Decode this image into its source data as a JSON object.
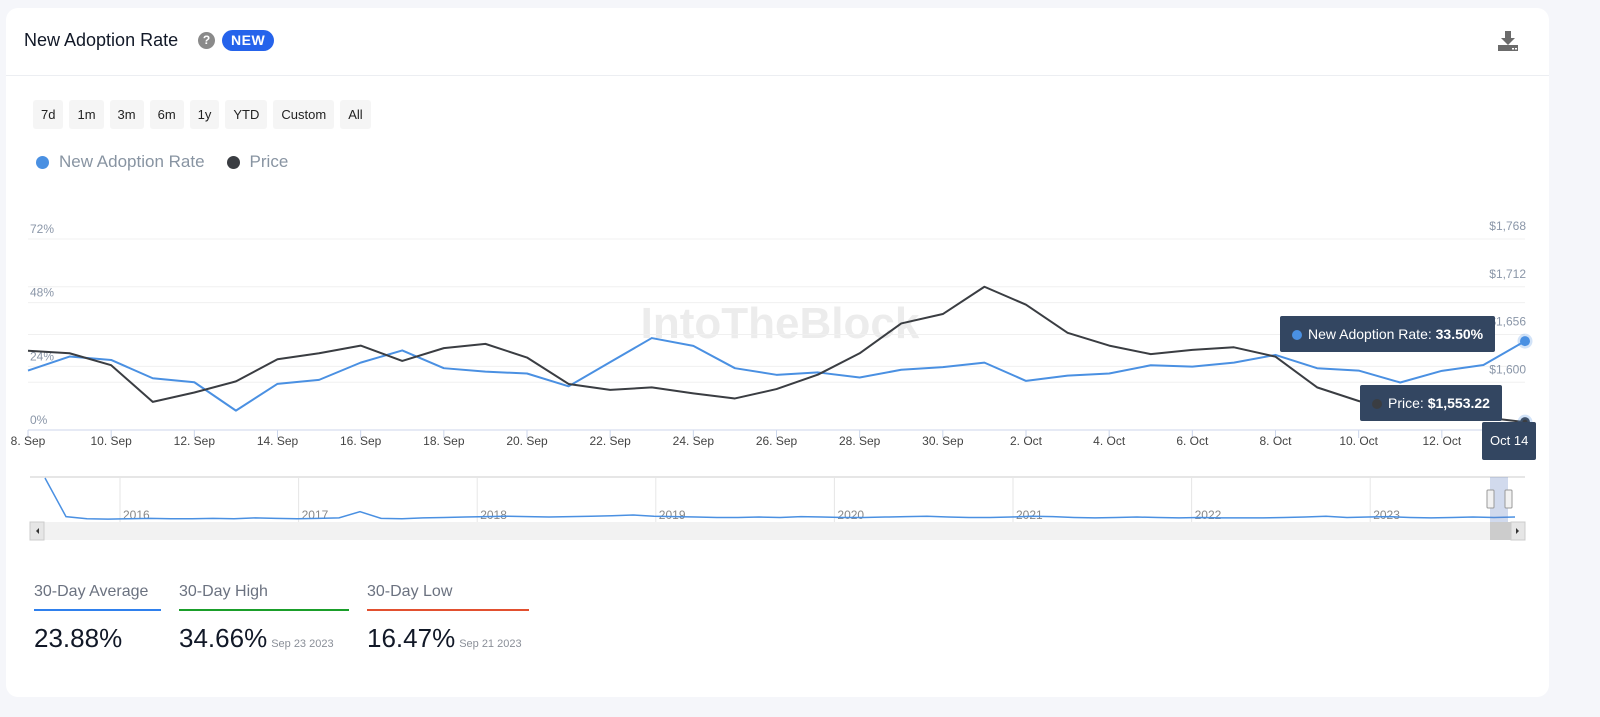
{
  "header": {
    "title": "New Adoption Rate",
    "help_icon": "?",
    "badge": "NEW"
  },
  "ranges": [
    "7d",
    "1m",
    "3m",
    "6m",
    "1y",
    "YTD",
    "Custom",
    "All"
  ],
  "legend": [
    {
      "label": "New Adoption Rate",
      "color": "#4a90e2"
    },
    {
      "label": "Price",
      "color": "#3a3d42"
    }
  ],
  "watermark": "IntoTheBlock",
  "tooltips": {
    "rate_label": "New Adoption Rate: ",
    "rate_value": "33.50%",
    "price_label": "Price: ",
    "price_value": "$1,553.22",
    "date": "Oct 14"
  },
  "chart_data": {
    "type": "line",
    "x": [
      "8. Sep",
      "9. Sep",
      "10. Sep",
      "11. Sep",
      "12. Sep",
      "13. Sep",
      "14. Sep",
      "15. Sep",
      "16. Sep",
      "17. Sep",
      "18. Sep",
      "19. Sep",
      "20. Sep",
      "21. Sep",
      "22. Sep",
      "23. Sep",
      "24. Sep",
      "25. Sep",
      "26. Sep",
      "27. Sep",
      "28. Sep",
      "29. Sep",
      "30. Sep",
      "1. Oct",
      "2. Oct",
      "3. Oct",
      "4. Oct",
      "5. Oct",
      "6. Oct",
      "7. Oct",
      "8. Oct",
      "9. Oct",
      "10. Oct",
      "11. Oct",
      "12. Oct",
      "13. Oct",
      "Oct 14"
    ],
    "x_tick_labels": [
      "8. Sep",
      "10. Sep",
      "12. Sep",
      "14. Sep",
      "16. Sep",
      "18. Sep",
      "20. Sep",
      "22. Sep",
      "24. Sep",
      "26. Sep",
      "28. Sep",
      "30. Sep",
      "2. Oct",
      "4. Oct",
      "6. Oct",
      "8. Oct",
      "10. Oct",
      "12. Oct"
    ],
    "series": [
      {
        "name": "New Adoption Rate",
        "axis": "left",
        "color": "#4a90e2",
        "values": [
          22.4,
          27.7,
          26.4,
          19.5,
          18.0,
          7.3,
          17.4,
          18.9,
          25.4,
          30.0,
          23.3,
          22.0,
          21.3,
          16.47,
          25.6,
          34.66,
          31.7,
          23.3,
          20.8,
          21.7,
          19.8,
          22.7,
          23.7,
          25.4,
          18.5,
          20.5,
          21.3,
          24.4,
          23.9,
          25.4,
          28.3,
          23.3,
          22.4,
          17.9,
          22.3,
          24.5,
          33.5
        ]
      },
      {
        "name": "Price",
        "axis": "right",
        "color": "#3a3d42",
        "values": [
          1637,
          1634,
          1620,
          1577,
          1588,
          1601,
          1627,
          1634,
          1643,
          1625,
          1640,
          1645,
          1629,
          1598,
          1591,
          1594,
          1587,
          1581,
          1592,
          1609,
          1634,
          1669,
          1680,
          1712,
          1691,
          1658,
          1643,
          1633,
          1638,
          1641,
          1630,
          1594,
          1578,
          1565,
          1562,
          1559,
          1553.22
        ]
      }
    ],
    "left_axis": {
      "ticks": [
        "0%",
        "24%",
        "48%",
        "72%"
      ],
      "range": [
        0,
        72
      ]
    },
    "right_axis": {
      "ticks": [
        "$1,768",
        "$1,712",
        "$1,656",
        "$1,600"
      ],
      "range": [
        1544,
        1768
      ]
    },
    "navigator": {
      "years": [
        "2016",
        "2017",
        "2018",
        "2019",
        "2020",
        "2021",
        "2022",
        "2023"
      ],
      "values": [
        100,
        8,
        3,
        2,
        3,
        4,
        3,
        3,
        4,
        3,
        5,
        4,
        3,
        4,
        5,
        20,
        4,
        3,
        5,
        6,
        7,
        8,
        9,
        8,
        7,
        8,
        9,
        10,
        12,
        9,
        8,
        7,
        6,
        6,
        7,
        6,
        8,
        7,
        6,
        6,
        7,
        8,
        9,
        7,
        6,
        6,
        7,
        9,
        8,
        6,
        5,
        6,
        7,
        6,
        5,
        6,
        5,
        5,
        5,
        6,
        7,
        9,
        6,
        7,
        8,
        6,
        5,
        6,
        7,
        6,
        7
      ]
    }
  },
  "stats": [
    {
      "label": "30-Day Average",
      "value": "23.88%",
      "date": "",
      "color": "#2f80ed"
    },
    {
      "label": "30-Day High",
      "value": "34.66%",
      "date": "Sep 23 2023",
      "color": "#1a9e2a"
    },
    {
      "label": "30-Day Low",
      "value": "16.47%",
      "date": "Sep 21 2023",
      "color": "#e2502f"
    }
  ]
}
